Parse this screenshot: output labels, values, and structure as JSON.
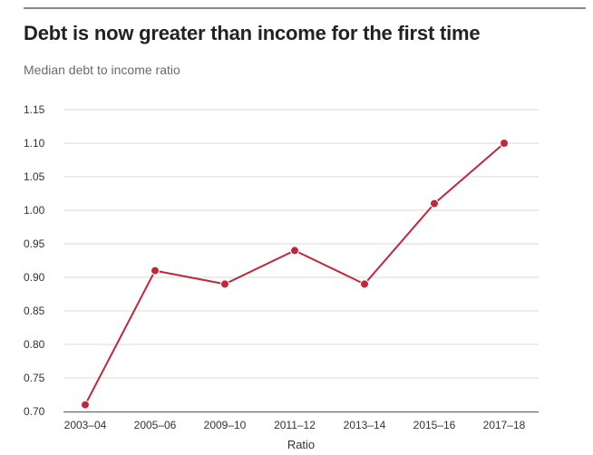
{
  "header": {
    "title": "Debt is now greater than income for the first time",
    "subtitle": "Median debt to income ratio"
  },
  "colors": {
    "series": "#c3253b",
    "grid": "#d9d9d9",
    "axis": "#555555"
  },
  "chart_data": {
    "type": "line",
    "title": "Debt is now greater than income for the first time",
    "subtitle": "Median debt to income ratio",
    "xlabel": "Ratio",
    "ylabel": "",
    "categories": [
      "2003–04",
      "2005–06",
      "2009–10",
      "2011–12",
      "2013–14",
      "2015–16",
      "2017–18"
    ],
    "series": [
      {
        "values": [
          0.71,
          0.91,
          0.89,
          0.94,
          0.89,
          1.01,
          1.1
        ]
      }
    ],
    "ylim": [
      0.7,
      1.15
    ],
    "yticks": [
      "0.70",
      "0.75",
      "0.80",
      "0.85",
      "0.90",
      "0.95",
      "1.00",
      "1.05",
      "1.10",
      "1.15"
    ],
    "grid": true,
    "legend": "none"
  }
}
